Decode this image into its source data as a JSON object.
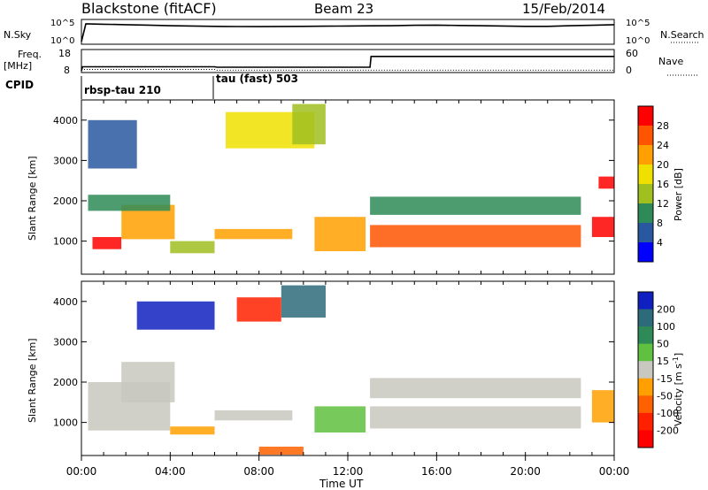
{
  "header": {
    "title": "Blackstone (fitACF)",
    "beam": "Beam 23",
    "date": "15/Feb/2014"
  },
  "noise_panel": {
    "left_label": "N.Sky",
    "right_label": "N.Search",
    "left_ticks": [
      "10^5",
      "10^0"
    ],
    "right_ticks": [
      "10^5",
      "10^0"
    ]
  },
  "freq_panel": {
    "left_label_line1": "Freq.",
    "left_label_line2": "[MHz]",
    "left_ticks": [
      "18",
      "8"
    ],
    "right_label": "Nave",
    "right_ticks": [
      "60",
      "0"
    ]
  },
  "cpid_panel": {
    "label": "CPID",
    "programs": [
      {
        "name": "rbsp-tau 210",
        "start_hour": 0
      },
      {
        "name": "tau (fast) 503",
        "start_hour": 6
      }
    ]
  },
  "x_axis": {
    "label": "Time UT",
    "ticks": [
      "00:00",
      "04:00",
      "08:00",
      "12:00",
      "16:00",
      "20:00",
      "00:00"
    ]
  },
  "power_colorbar": {
    "label": "Power [dB]",
    "ticks": [
      "28",
      "24",
      "20",
      "16",
      "12",
      "8",
      "4"
    ],
    "colors": [
      "#ff0000",
      "#ff5500",
      "#ffa000",
      "#f0e000",
      "#a0c020",
      "#2e8b57",
      "#2858a0",
      "#0000ff"
    ]
  },
  "velocity_colorbar": {
    "label_main": "Velocity [m s",
    "label_sup": "-1",
    "label_end": "]",
    "ticks": [
      "200",
      "100",
      "50",
      "15",
      "-15",
      "-50",
      "-100",
      "-200"
    ],
    "colors": [
      "#1020c0",
      "#2e6b7a",
      "#2e8b57",
      "#60c040",
      "#c8c8c0",
      "#ffa000",
      "#ff6000",
      "#ff2000",
      "#ff0000"
    ]
  },
  "chart_data": [
    {
      "type": "line",
      "title": "Blackstone (fitACF)",
      "subtitle": "Beam 23",
      "xlabel": "Time UT",
      "ylabel": "N.Sky",
      "y_scale": "log",
      "xlim": [
        0,
        24
      ],
      "series": [
        {
          "name": "N.Sky",
          "x": [
            0,
            0.2,
            1,
            2,
            3,
            4,
            5,
            6,
            7,
            8,
            9,
            10,
            11,
            12,
            13,
            14,
            15,
            16,
            17,
            18,
            19,
            20,
            21,
            22,
            23,
            24
          ],
          "values": [
            1,
            100000,
            80000,
            60000,
            45000,
            30000,
            25000,
            20000,
            18000,
            17000,
            19000,
            20000,
            22000,
            25000,
            28000,
            30000,
            40000,
            45000,
            35000,
            30000,
            25000,
            20000,
            20000,
            30000,
            40000,
            60000
          ]
        }
      ]
    },
    {
      "type": "line",
      "ylabel": "Freq. [MHz]",
      "xlim": [
        0,
        24
      ],
      "ylim": [
        8,
        18
      ],
      "series": [
        {
          "name": "Freq.",
          "x": [
            0,
            0.05,
            6,
            6.1,
            13,
            13.05,
            24
          ],
          "values": [
            8,
            10.5,
            10.5,
            10.2,
            10.2,
            17,
            17
          ]
        },
        {
          "name": "Nave",
          "x": [
            0,
            6,
            6.1,
            24
          ],
          "values": [
            5,
            5,
            2,
            2
          ]
        }
      ]
    },
    {
      "type": "heatmap",
      "ylabel": "Slant Range [km]",
      "colorbar_label": "Power [dB]",
      "xlim": [
        0,
        24
      ],
      "ylim": [
        180,
        4500
      ],
      "color_range": [
        0,
        30
      ],
      "bands": [
        {
          "t0": 0.5,
          "t1": 1.8,
          "r0": 800,
          "r1": 1100,
          "value": 27
        },
        {
          "t0": 1.8,
          "t1": 4.2,
          "r0": 1050,
          "r1": 1900,
          "value": 22
        },
        {
          "t0": 0.3,
          "t1": 4.0,
          "r0": 1750,
          "r1": 2150,
          "value": 10
        },
        {
          "t0": 4.0,
          "t1": 6.0,
          "r0": 700,
          "r1": 1000,
          "value": 13
        },
        {
          "t0": 6.0,
          "t1": 9.5,
          "r0": 1050,
          "r1": 1300,
          "value": 20
        },
        {
          "t0": 6.5,
          "t1": 10.5,
          "r0": 3300,
          "r1": 4200,
          "value": 17
        },
        {
          "t0": 9.5,
          "t1": 11.0,
          "r0": 3400,
          "r1": 4400,
          "value": 12
        },
        {
          "t0": 10.5,
          "t1": 12.8,
          "r0": 750,
          "r1": 1600,
          "value": 22
        },
        {
          "t0": 13.0,
          "t1": 22.5,
          "r0": 850,
          "r1": 1400,
          "value": 26
        },
        {
          "t0": 13.0,
          "t1": 22.5,
          "r0": 1650,
          "r1": 2100,
          "value": 8
        },
        {
          "t0": 23.0,
          "t1": 24.0,
          "r0": 1100,
          "r1": 1600,
          "value": 28
        },
        {
          "t0": 23.3,
          "t1": 24.0,
          "r0": 2300,
          "r1": 2600,
          "value": 29
        },
        {
          "t0": 0.3,
          "t1": 2.5,
          "r0": 2800,
          "r1": 4000,
          "value": 6
        }
      ]
    },
    {
      "type": "heatmap",
      "ylabel": "Slant Range [km]",
      "colorbar_label": "Velocity [m s-1]",
      "xlim": [
        0,
        24
      ],
      "ylim": [
        180,
        4500
      ],
      "color_range": [
        -250,
        250
      ],
      "bands": [
        {
          "t0": 0.3,
          "t1": 4.0,
          "r0": 800,
          "r1": 2000,
          "value": 0
        },
        {
          "t0": 1.8,
          "t1": 4.2,
          "r0": 1500,
          "r1": 2500,
          "value": 0
        },
        {
          "t0": 4.0,
          "t1": 6.0,
          "r0": 700,
          "r1": 900,
          "value": -40
        },
        {
          "t0": 6.0,
          "t1": 9.5,
          "r0": 1050,
          "r1": 1300,
          "value": 0
        },
        {
          "t0": 2.5,
          "t1": 6.0,
          "r0": 3300,
          "r1": 4000,
          "value": 180
        },
        {
          "t0": 7.0,
          "t1": 9.0,
          "r0": 3500,
          "r1": 4100,
          "value": -150
        },
        {
          "t0": 9.0,
          "t1": 11.0,
          "r0": 3600,
          "r1": 4400,
          "value": 150
        },
        {
          "t0": 8.0,
          "t1": 10.0,
          "r0": 200,
          "r1": 400,
          "value": -60
        },
        {
          "t0": 10.5,
          "t1": 12.8,
          "r0": 750,
          "r1": 1400,
          "value": 30
        },
        {
          "t0": 13.0,
          "t1": 22.5,
          "r0": 850,
          "r1": 1400,
          "value": 0
        },
        {
          "t0": 13.0,
          "t1": 22.5,
          "r0": 1600,
          "r1": 2100,
          "value": 0
        },
        {
          "t0": 23.0,
          "t1": 24.0,
          "r0": 1000,
          "r1": 1800,
          "value": -40
        }
      ]
    }
  ]
}
